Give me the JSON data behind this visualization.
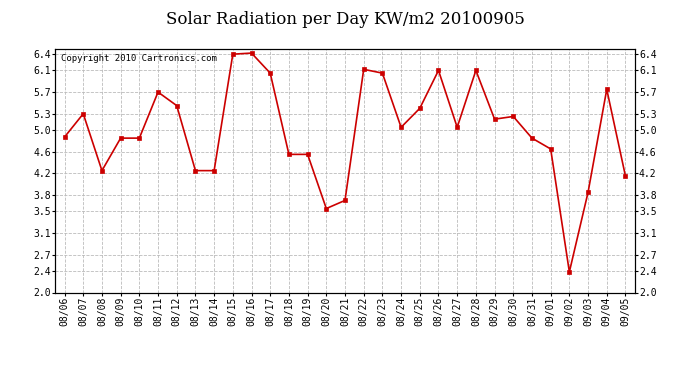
{
  "title": "Solar Radiation per Day KW/m2 20100905",
  "copyright_text": "Copyright 2010 Cartronics.com",
  "dates": [
    "08/06",
    "08/07",
    "08/08",
    "08/09",
    "08/10",
    "08/11",
    "08/12",
    "08/13",
    "08/14",
    "08/15",
    "08/16",
    "08/17",
    "08/18",
    "08/19",
    "08/20",
    "08/21",
    "08/22",
    "08/23",
    "08/24",
    "08/25",
    "08/26",
    "08/27",
    "08/28",
    "08/29",
    "08/30",
    "08/31",
    "09/01",
    "09/02",
    "09/03",
    "09/04",
    "09/05"
  ],
  "values": [
    4.87,
    5.3,
    4.25,
    4.85,
    4.85,
    5.7,
    5.45,
    4.25,
    4.25,
    6.4,
    6.42,
    6.05,
    4.55,
    4.55,
    3.55,
    3.7,
    6.12,
    6.05,
    5.05,
    5.4,
    6.1,
    5.05,
    6.1,
    5.2,
    5.25,
    4.85,
    4.65,
    2.38,
    3.85,
    5.75,
    4.15
  ],
  "line_color": "#cc0000",
  "marker": "s",
  "marker_size": 2.5,
  "ylim": [
    2.0,
    6.5
  ],
  "yticks": [
    2.0,
    2.4,
    2.7,
    3.1,
    3.5,
    3.8,
    4.2,
    4.6,
    5.0,
    5.3,
    5.7,
    6.1,
    6.4
  ],
  "background_color": "#ffffff",
  "grid_color": "#bbbbbb",
  "title_fontsize": 12,
  "copyright_fontsize": 6.5,
  "tick_fontsize": 7
}
